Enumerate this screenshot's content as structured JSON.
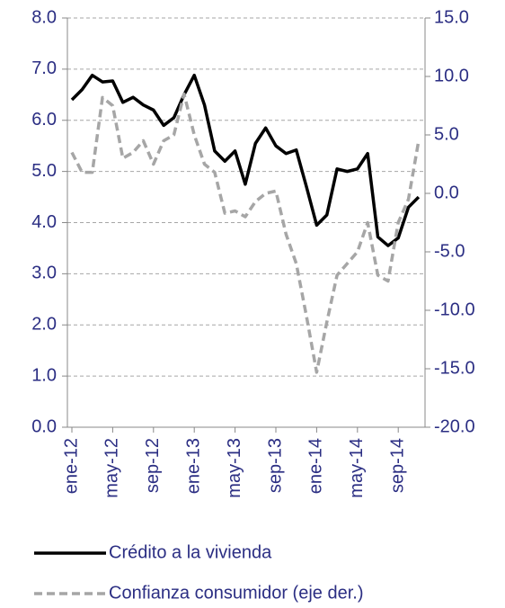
{
  "chart_data": {
    "type": "line",
    "categories": [
      "ene-12",
      null,
      null,
      null,
      "may-12",
      null,
      null,
      null,
      "sep-12",
      null,
      null,
      null,
      "ene-13",
      null,
      null,
      null,
      "may-13",
      null,
      null,
      null,
      "sep-13",
      null,
      null,
      null,
      "ene-14",
      null,
      null,
      null,
      "may-14",
      null,
      null,
      null,
      "sep-14",
      null,
      null
    ],
    "series": [
      {
        "name": "Crédito a la vivienda",
        "color": "#000000",
        "dash": false,
        "values": [
          6.4,
          6.6,
          6.88,
          6.75,
          6.77,
          6.35,
          6.45,
          6.3,
          6.2,
          5.9,
          6.05,
          6.5,
          6.88,
          6.3,
          5.4,
          5.2,
          5.4,
          4.75,
          5.55,
          5.85,
          5.5,
          5.35,
          5.42,
          4.7,
          3.95,
          4.15,
          5.05,
          5.0,
          5.05,
          5.35,
          3.72,
          3.55,
          3.7,
          4.3,
          4.5
        ]
      },
      {
        "name": "Confianza consumidor (eje der.)",
        "color": "#a6a6a6",
        "dash": true,
        "axis": "y2",
        "values": [
          3.5,
          1.8,
          1.8,
          8.2,
          7.5,
          3.0,
          3.5,
          4.5,
          2.5,
          4.5,
          5.0,
          8.5,
          5.0,
          2.5,
          1.8,
          -1.7,
          -1.5,
          -2.0,
          -0.7,
          0,
          0.2,
          -3.5,
          -6.0,
          -10.5,
          -15.3,
          -11.0,
          -7.0,
          -6.0,
          -5.0,
          -2.5,
          -7.0,
          -7.5,
          -2.5,
          -0.5,
          4.5
        ]
      }
    ],
    "ylim": [
      0,
      8
    ],
    "yticks": [
      {
        "value": 0,
        "label": "0.0"
      },
      {
        "value": 1,
        "label": "1.0"
      },
      {
        "value": 2,
        "label": "2.0"
      },
      {
        "value": 3,
        "label": "3.0"
      },
      {
        "value": 4,
        "label": "4.0"
      },
      {
        "value": 5,
        "label": "5.0"
      },
      {
        "value": 6,
        "label": "6.0"
      },
      {
        "value": 7,
        "label": "7.0"
      },
      {
        "value": 8,
        "label": "8.0"
      }
    ],
    "y2lim": [
      -20,
      15
    ],
    "y2ticks": [
      {
        "value": -20,
        "label": "-20.0"
      },
      {
        "value": -15,
        "label": "-15.0"
      },
      {
        "value": -10,
        "label": "-10.0"
      },
      {
        "value": -5,
        "label": "-5.0"
      },
      {
        "value": 0,
        "label": "0.0"
      },
      {
        "value": 5,
        "label": "5.0"
      },
      {
        "value": 10,
        "label": "10.0"
      },
      {
        "value": 15,
        "label": "15.0"
      }
    ],
    "grid": true
  }
}
